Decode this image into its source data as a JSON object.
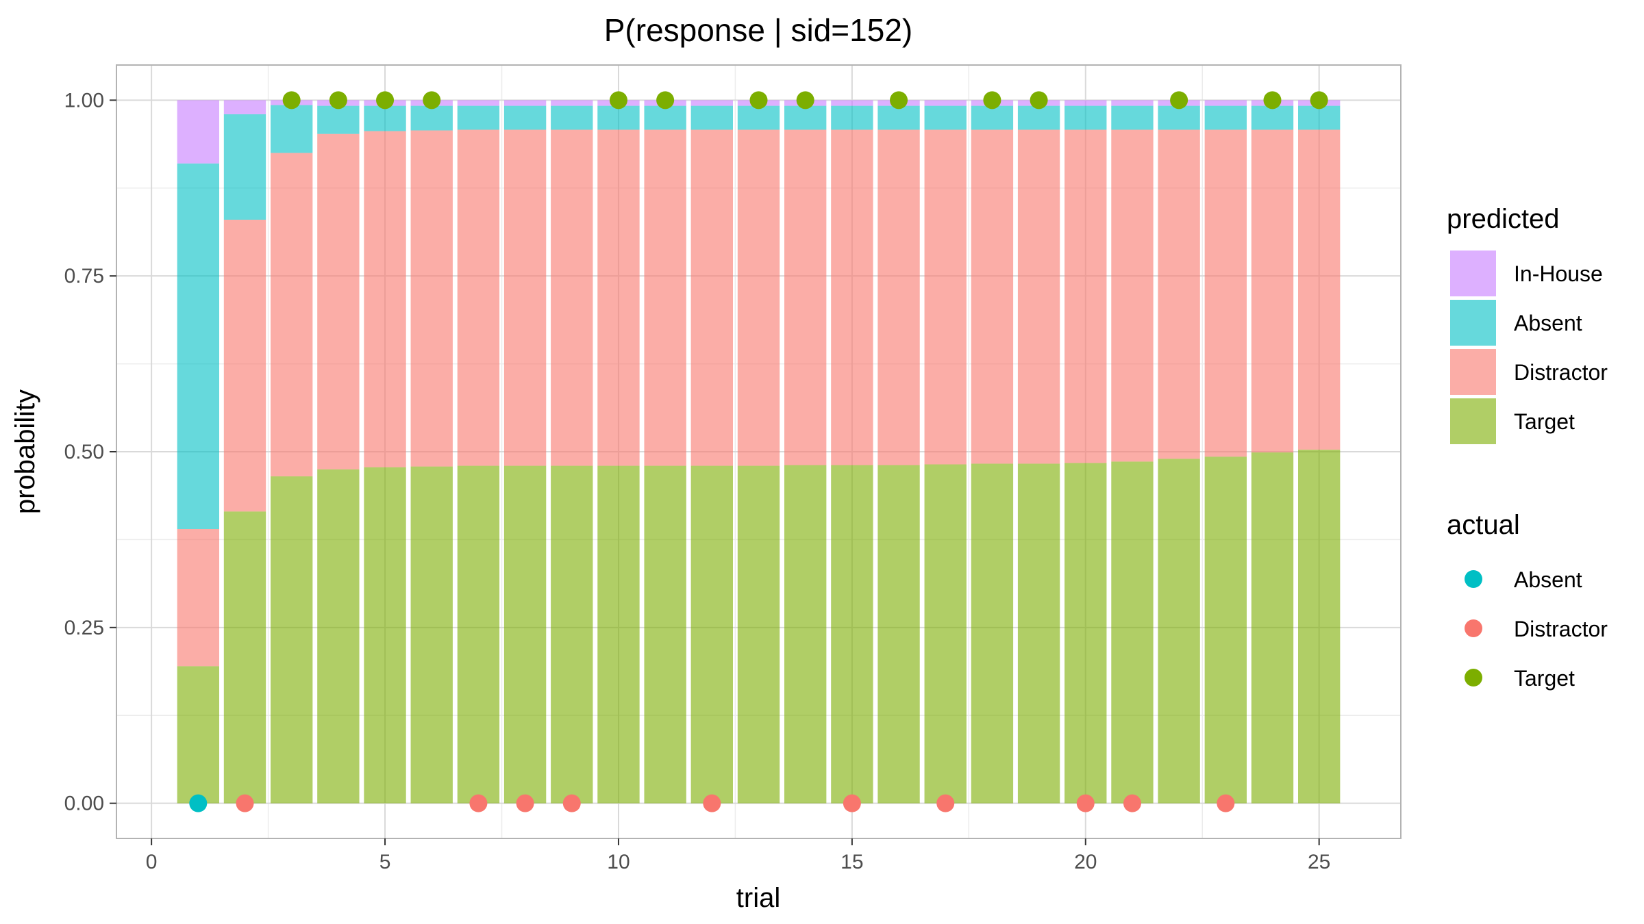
{
  "chart_data": {
    "type": "bar",
    "title": "P(response | sid=152)",
    "xlabel": "trial",
    "ylabel": "probability",
    "xlim": [
      -0.75,
      26.75
    ],
    "ylim": [
      -0.05,
      1.05
    ],
    "x_ticks": [
      0,
      5,
      10,
      15,
      20,
      25
    ],
    "x_tick_labels": [
      "0",
      "5",
      "10",
      "15",
      "20",
      "25"
    ],
    "y_ticks": [
      0,
      0.25,
      0.5,
      0.75,
      1.0
    ],
    "y_tick_labels": [
      "0.00",
      "0.25",
      "0.50",
      "0.75",
      "1.00"
    ],
    "grid": true,
    "stacked": true,
    "categories": [
      1,
      2,
      3,
      4,
      5,
      6,
      7,
      8,
      9,
      10,
      11,
      12,
      13,
      14,
      15,
      16,
      17,
      18,
      19,
      20,
      21,
      22,
      23,
      24,
      25
    ],
    "series": [
      {
        "name": "Target",
        "color": "#7CAE00",
        "values": [
          0.195,
          0.415,
          0.465,
          0.475,
          0.478,
          0.479,
          0.48,
          0.48,
          0.48,
          0.48,
          0.48,
          0.48,
          0.48,
          0.481,
          0.481,
          0.481,
          0.482,
          0.483,
          0.483,
          0.484,
          0.486,
          0.49,
          0.493,
          0.499,
          0.503
        ]
      },
      {
        "name": "Distractor",
        "color": "#F8766D",
        "values": [
          0.195,
          0.415,
          0.46,
          0.477,
          0.478,
          0.478,
          0.478,
          0.478,
          0.478,
          0.478,
          0.478,
          0.478,
          0.478,
          0.477,
          0.477,
          0.477,
          0.476,
          0.475,
          0.475,
          0.474,
          0.472,
          0.468,
          0.465,
          0.459,
          0.455
        ]
      },
      {
        "name": "Absent",
        "color": "#00BFC4",
        "values": [
          0.52,
          0.15,
          0.068,
          0.04,
          0.036,
          0.035,
          0.034,
          0.034,
          0.034,
          0.034,
          0.034,
          0.034,
          0.034,
          0.034,
          0.034,
          0.034,
          0.034,
          0.034,
          0.034,
          0.034,
          0.034,
          0.034,
          0.034,
          0.034,
          0.034
        ]
      },
      {
        "name": "In-House",
        "color": "#C77CFF",
        "values": [
          0.09,
          0.02,
          0.007,
          0.008,
          0.008,
          0.008,
          0.008,
          0.008,
          0.008,
          0.008,
          0.008,
          0.008,
          0.008,
          0.008,
          0.008,
          0.008,
          0.008,
          0.008,
          0.008,
          0.008,
          0.008,
          0.008,
          0.008,
          0.008,
          0.008
        ]
      }
    ],
    "actual_points": {
      "name": "actual",
      "x": [
        1,
        2,
        3,
        4,
        5,
        6,
        7,
        8,
        9,
        10,
        11,
        12,
        13,
        14,
        15,
        16,
        17,
        18,
        19,
        20,
        21,
        22,
        23,
        24,
        25
      ],
      "y": [
        0,
        0,
        1,
        1,
        1,
        1,
        0,
        0,
        0,
        1,
        1,
        0,
        1,
        1,
        0,
        1,
        0,
        1,
        1,
        0,
        0,
        1,
        0,
        1,
        1
      ],
      "category": [
        "Absent",
        "Distractor",
        "Target",
        "Target",
        "Target",
        "Target",
        "Distractor",
        "Distractor",
        "Distractor",
        "Target",
        "Target",
        "Distractor",
        "Target",
        "Target",
        "Distractor",
        "Target",
        "Distractor",
        "Target",
        "Target",
        "Distractor",
        "Distractor",
        "Target",
        "Distractor",
        "Target",
        "Target"
      ]
    },
    "legend": {
      "placement": "right",
      "predicted": {
        "title": "predicted",
        "items": [
          {
            "label": "In-House",
            "color": "#C77CFF"
          },
          {
            "label": "Absent",
            "color": "#00BFC4"
          },
          {
            "label": "Distractor",
            "color": "#F8766D"
          },
          {
            "label": "Target",
            "color": "#7CAE00"
          }
        ]
      },
      "actual": {
        "title": "actual",
        "items": [
          {
            "label": "Absent",
            "color": "#00BFC4"
          },
          {
            "label": "Distractor",
            "color": "#F8766D"
          },
          {
            "label": "Target",
            "color": "#7CAE00"
          }
        ]
      }
    },
    "bar_opacity": 0.6,
    "colors": {
      "grid_major": "#d9d9d9",
      "grid_minor": "#ececec",
      "panel_border": "#b3b3b3",
      "tick_text": "#4d4d4d"
    }
  }
}
